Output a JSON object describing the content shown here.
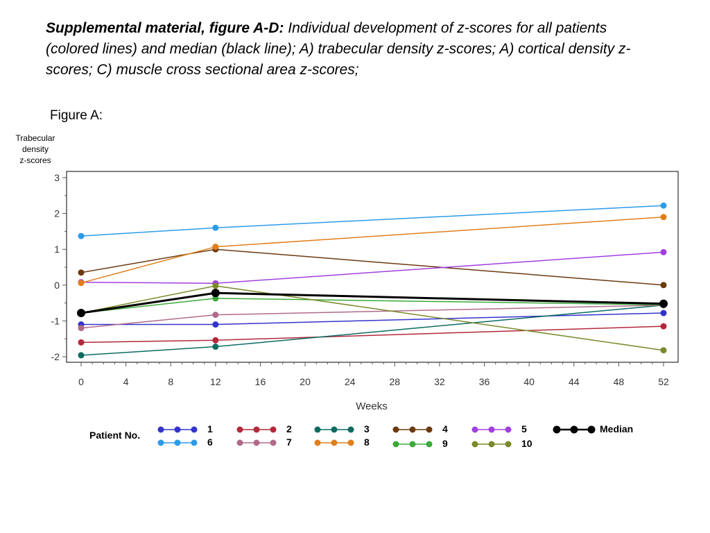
{
  "caption": {
    "bold": "Supplemental material, figure  A-D:",
    "text": " Individual development of z-scores for all patients (colored lines) and median (black line); A) trabecular density z-scores; A) cortical density z-scores; C) muscle cross sectional area z-scores;"
  },
  "figure_label": "Figure A:",
  "chart_data": {
    "type": "line",
    "ylabel_lines": [
      "Trabecular",
      "density",
      "z-scores"
    ],
    "xlabel": "Weeks",
    "x": [
      0,
      12,
      52
    ],
    "xlim": [
      0,
      52
    ],
    "ylim": [
      -2.2,
      3.1
    ],
    "x_ticks": [
      0,
      4,
      8,
      12,
      16,
      20,
      24,
      28,
      32,
      36,
      40,
      44,
      48,
      52
    ],
    "y_ticks": [
      -2,
      -1,
      0,
      1,
      2,
      3
    ],
    "grid": false,
    "legend_title": "Patient No.",
    "legend_position": "bottom",
    "series": [
      {
        "name": "1",
        "color": "#3333cc",
        "values": [
          -1.1,
          -1.1,
          -0.78
        ]
      },
      {
        "name": "2",
        "color": "#b3283a",
        "values": [
          -1.6,
          -1.54,
          -1.15
        ]
      },
      {
        "name": "3",
        "color": "#0b6b60",
        "values": [
          -1.96,
          -1.72,
          -0.56
        ]
      },
      {
        "name": "4",
        "color": "#6b3a0f",
        "values": [
          0.35,
          1.0,
          0.0
        ]
      },
      {
        "name": "5",
        "color": "#a040dd",
        "values": [
          0.08,
          0.05,
          0.92
        ]
      },
      {
        "name": "6",
        "color": "#2d9be8",
        "values": [
          1.37,
          1.6,
          2.22
        ]
      },
      {
        "name": "7",
        "color": "#b06a8a",
        "values": [
          -1.2,
          -0.83,
          -0.56
        ]
      },
      {
        "name": "8",
        "color": "#e07f1a",
        "values": [
          0.06,
          1.07,
          1.9
        ]
      },
      {
        "name": "9",
        "color": "#3aaa3a",
        "values": [
          -0.78,
          -0.37,
          -0.55
        ]
      },
      {
        "name": "10",
        "color": "#7a8a28",
        "values": [
          -0.78,
          -0.02,
          -1.82
        ]
      },
      {
        "name": "Median",
        "color": "#000000",
        "values": [
          -0.78,
          -0.22,
          -0.52
        ]
      }
    ]
  }
}
